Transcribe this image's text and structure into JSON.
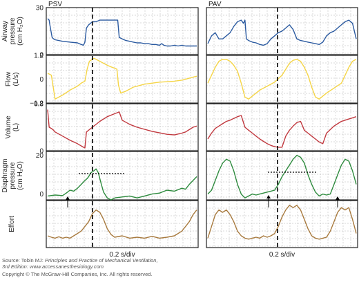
{
  "chart_data": {
    "type": "line",
    "colors": {
      "airway": "#2b5aa0",
      "flow": "#f5d547",
      "volume": "#c1393f",
      "diaphragm": "#2e8b3e",
      "effort": "#a87a3e",
      "grid": "#b0b0b0",
      "frame": "#222222"
    },
    "panels": [
      {
        "title": "PSV",
        "xlabel": "0.2 s/div"
      },
      {
        "title": "PAV",
        "xlabel": "0.2 s/div"
      }
    ],
    "rows": [
      {
        "key": "airway",
        "label_lines": [
          "Airway",
          "pressure",
          "(cm H₂O)"
        ],
        "ylim": [
          0,
          30
        ],
        "ticks": [
          {
            "v": 30,
            "t": "30"
          },
          {
            "v": 0,
            "t": "0"
          }
        ]
      },
      {
        "key": "flow",
        "label_lines": [
          "Flow",
          "(L/s)"
        ],
        "ylim": [
          -1.2,
          1.2
        ],
        "ticks": [
          {
            "v": 1.2,
            "t": "1.2"
          },
          {
            "v": 0,
            "t": "0"
          },
          {
            "v": -1.2,
            "t": "−1.2"
          }
        ]
      },
      {
        "key": "volume",
        "label_lines": [
          "Volume",
          "(L)"
        ],
        "ylim": [
          0,
          0.8
        ],
        "ticks": [
          {
            "v": 0.8,
            "t": "0.8"
          },
          {
            "v": 0,
            "t": "0"
          }
        ]
      },
      {
        "key": "diaphragm",
        "label_lines": [
          "Diaphragm",
          "pressure",
          "(cm H₂O)"
        ],
        "ylim": [
          -3,
          22
        ],
        "ticks": [
          {
            "v": 20,
            "t": "20"
          },
          {
            "v": 0,
            "t": "0"
          }
        ]
      },
      {
        "key": "effort",
        "label_lines": [
          "Effort"
        ],
        "ylim": [
          0,
          1
        ],
        "ticks": []
      }
    ],
    "series": [
      {
        "panel": 0,
        "row": "airway",
        "x": [
          0,
          0.02,
          0.03,
          0.06,
          0.08,
          0.1,
          0.2,
          0.3,
          0.4,
          0.45,
          0.48,
          0.5,
          0.52,
          0.55,
          0.6,
          0.65,
          0.7,
          0.75,
          0.8,
          0.85,
          0.9,
          0.92,
          0.94,
          0.96,
          1.0,
          1.05,
          1.1,
          1.15,
          1.2,
          1.25,
          1.3,
          1.35,
          1.4,
          1.45,
          1.5,
          1.53,
          1.56,
          1.6,
          1.65,
          1.7,
          1.75,
          1.8,
          1.85,
          1.9,
          1.95,
          2.0
        ],
        "y": [
          23,
          22,
          19,
          11,
          10,
          9.5,
          8.5,
          8,
          7.5,
          6.5,
          6,
          8,
          17,
          19,
          21,
          21,
          22,
          22,
          22,
          22,
          22,
          22,
          22,
          11,
          10,
          9,
          8.5,
          8,
          7.5,
          7.5,
          7,
          7,
          6.5,
          6.5,
          6,
          7,
          6,
          5.5,
          5.5,
          6,
          5.5,
          6,
          5.5,
          5.5,
          5.5,
          5.5
        ]
      },
      {
        "panel": 0,
        "row": "flow",
        "x": [
          0,
          0.05,
          0.1,
          0.15,
          0.2,
          0.3,
          0.4,
          0.45,
          0.5,
          0.53,
          0.56,
          0.6,
          0.62,
          0.65,
          0.7,
          0.75,
          0.8,
          0.85,
          0.9,
          0.93,
          0.95,
          0.98,
          1.05,
          1.15,
          1.3,
          1.5,
          1.7,
          1.8,
          1.9,
          1.95,
          2.0
        ],
        "y": [
          0.3,
          0.2,
          -1.0,
          -0.9,
          -0.8,
          -0.55,
          -0.35,
          -0.2,
          -0.1,
          0.5,
          0.9,
          1.0,
          1.05,
          1.0,
          0.9,
          0.8,
          0.7,
          0.62,
          0.55,
          0.5,
          -0.3,
          -0.7,
          -0.6,
          -0.4,
          -0.25,
          -0.15,
          -0.1,
          -0.05,
          0.05,
          0.1,
          0.15
        ]
      },
      {
        "panel": 0,
        "row": "volume",
        "x": [
          0,
          0.02,
          0.05,
          0.08,
          0.1,
          0.2,
          0.3,
          0.4,
          0.48,
          0.5,
          0.52,
          0.6,
          0.7,
          0.8,
          0.9,
          0.96,
          1.0,
          1.1,
          1.2,
          1.4,
          1.6,
          1.7,
          1.8,
          1.85,
          1.9,
          1.95,
          2.0
        ],
        "y": [
          0.7,
          0.4,
          0.38,
          0.35,
          0.32,
          0.25,
          0.18,
          0.12,
          0.06,
          0.05,
          0.32,
          0.4,
          0.5,
          0.58,
          0.63,
          0.66,
          0.52,
          0.45,
          0.4,
          0.33,
          0.28,
          0.27,
          0.3,
          0.32,
          0.36,
          0.4,
          0.42
        ]
      },
      {
        "panel": 0,
        "row": "diaphragm",
        "x": [
          0,
          0.1,
          0.2,
          0.25,
          0.3,
          0.35,
          0.4,
          0.45,
          0.5,
          0.53,
          0.55,
          0.58,
          0.62,
          0.65,
          0.68,
          0.72,
          0.75,
          0.8,
          0.85,
          0.9,
          1.0,
          1.1,
          1.2,
          1.3,
          1.4,
          1.5,
          1.6,
          1.7,
          1.8,
          1.85,
          1.9,
          1.95,
          2.0
        ],
        "y": [
          -1,
          -0.5,
          -0.8,
          0.5,
          2,
          1.5,
          3,
          5,
          7,
          8,
          9,
          11,
          12,
          13,
          11,
          5,
          1,
          -2,
          -3,
          -2,
          -1.5,
          -1,
          -2,
          -1,
          0,
          0.5,
          2,
          1.5,
          3,
          2.5,
          5,
          7,
          9
        ]
      },
      {
        "panel": 0,
        "row": "effort",
        "x": [
          0,
          0.05,
          0.1,
          0.15,
          0.2,
          0.25,
          0.3,
          0.35,
          0.4,
          0.45,
          0.5,
          0.55,
          0.6,
          0.65,
          0.7,
          0.75,
          0.8,
          0.85,
          0.9,
          1.0,
          1.1,
          1.2,
          1.3,
          1.4,
          1.5,
          1.6,
          1.7,
          1.75,
          1.8,
          1.85,
          1.9,
          1.95,
          2.0
        ],
        "y": [
          0.25,
          0.22,
          0.2,
          0.23,
          0.2,
          0.22,
          0.2,
          0.25,
          0.3,
          0.35,
          0.45,
          0.55,
          0.72,
          0.8,
          0.75,
          0.6,
          0.4,
          0.28,
          0.22,
          0.25,
          0.2,
          0.22,
          0.2,
          0.24,
          0.2,
          0.22,
          0.25,
          0.3,
          0.35,
          0.45,
          0.55,
          0.7,
          0.8
        ]
      },
      {
        "panel": 1,
        "row": "airway",
        "x": [
          0,
          0.05,
          0.1,
          0.15,
          0.2,
          0.25,
          0.3,
          0.35,
          0.4,
          0.45,
          0.48,
          0.5,
          0.52,
          0.55,
          0.6,
          0.65,
          0.7,
          0.75,
          0.8,
          0.85,
          0.9,
          0.95,
          1.0,
          1.05,
          1.1,
          1.15,
          1.2,
          1.25,
          1.3,
          1.35,
          1.4,
          1.45,
          1.5,
          1.55,
          1.6,
          1.65,
          1.7,
          1.75,
          1.8,
          1.85,
          1.9,
          1.95,
          2.0
        ],
        "y": [
          7,
          12,
          14,
          10,
          10,
          12,
          14,
          18,
          21,
          22,
          20,
          22,
          10,
          9,
          8,
          7.5,
          6.5,
          6,
          7,
          10,
          12,
          14,
          15,
          17,
          19,
          16,
          10,
          9,
          8.5,
          8,
          7.5,
          7,
          6.5,
          8,
          12,
          14,
          15,
          17,
          19,
          21,
          22,
          20,
          10
        ]
      },
      {
        "panel": 1,
        "row": "flow",
        "x": [
          0,
          0.05,
          0.1,
          0.15,
          0.2,
          0.25,
          0.3,
          0.35,
          0.4,
          0.45,
          0.5,
          0.55,
          0.6,
          0.65,
          0.7,
          0.8,
          0.9,
          1.0,
          1.05,
          1.1,
          1.15,
          1.2,
          1.25,
          1.3,
          1.35,
          1.4,
          1.45,
          1.5,
          1.55,
          1.6,
          1.7,
          1.8,
          1.85,
          1.9,
          1.95,
          2.0
        ],
        "y": [
          -0.2,
          0.2,
          0.6,
          0.9,
          1.0,
          1.0,
          0.9,
          0.7,
          0.4,
          -0.2,
          -0.9,
          -1.0,
          -0.85,
          -0.7,
          -0.55,
          -0.35,
          -0.15,
          0.2,
          0.5,
          0.8,
          0.95,
          1.0,
          0.9,
          0.6,
          0.2,
          -0.4,
          -0.9,
          -1.0,
          -0.85,
          -0.7,
          -0.45,
          -0.2,
          0.2,
          0.6,
          0.9,
          1.0
        ]
      },
      {
        "panel": 1,
        "row": "volume",
        "x": [
          0,
          0.05,
          0.1,
          0.15,
          0.2,
          0.25,
          0.3,
          0.35,
          0.4,
          0.45,
          0.5,
          0.55,
          0.6,
          0.65,
          0.7,
          0.75,
          0.8,
          0.85,
          0.9,
          0.95,
          1.0,
          1.05,
          1.1,
          1.15,
          1.2,
          1.25,
          1.3,
          1.35,
          1.4,
          1.45,
          1.5,
          1.55,
          1.6,
          1.65,
          1.7,
          1.75,
          1.8,
          1.85,
          1.9,
          1.95,
          2.0
        ],
        "y": [
          0.2,
          0.3,
          0.38,
          0.42,
          0.46,
          0.5,
          0.52,
          0.55,
          0.58,
          0.6,
          0.4,
          0.35,
          0.3,
          0.25,
          0.2,
          0.16,
          0.12,
          0.09,
          0.07,
          0.06,
          0.06,
          0.25,
          0.35,
          0.42,
          0.48,
          0.5,
          0.35,
          0.3,
          0.25,
          0.2,
          0.15,
          0.12,
          0.3,
          0.36,
          0.42,
          0.46,
          0.5,
          0.52,
          0.54,
          0.56,
          0.58
        ]
      },
      {
        "panel": 1,
        "row": "diaphragm",
        "x": [
          0,
          0.05,
          0.1,
          0.15,
          0.2,
          0.25,
          0.3,
          0.35,
          0.4,
          0.45,
          0.5,
          0.55,
          0.6,
          0.65,
          0.7,
          0.75,
          0.8,
          0.85,
          0.9,
          0.95,
          1.0,
          1.05,
          1.1,
          1.15,
          1.2,
          1.25,
          1.3,
          1.35,
          1.4,
          1.45,
          1.5,
          1.55,
          1.6,
          1.65,
          1.7,
          1.75,
          1.8,
          1.85,
          1.9,
          1.95,
          2.0
        ],
        "y": [
          0,
          2,
          7,
          12,
          16,
          18,
          17,
          12,
          5,
          0,
          -2,
          -1,
          0,
          -0.5,
          0,
          0.5,
          1,
          1.5,
          2,
          5,
          9,
          12,
          15,
          18,
          20,
          19,
          16,
          10,
          5,
          1,
          -1,
          0,
          -0.5,
          0,
          5,
          10,
          15,
          18,
          17,
          12,
          5
        ]
      },
      {
        "panel": 1,
        "row": "effort",
        "x": [
          0,
          0.05,
          0.1,
          0.15,
          0.2,
          0.25,
          0.3,
          0.35,
          0.4,
          0.45,
          0.5,
          0.55,
          0.6,
          0.65,
          0.7,
          0.75,
          0.8,
          0.85,
          0.9,
          0.95,
          1.0,
          1.05,
          1.1,
          1.15,
          1.2,
          1.25,
          1.3,
          1.35,
          1.4,
          1.45,
          1.5,
          1.55,
          1.6,
          1.65,
          1.7,
          1.75,
          1.8,
          1.85,
          1.9,
          1.95,
          2.0
        ],
        "y": [
          0.2,
          0.45,
          0.7,
          0.8,
          0.75,
          0.8,
          0.7,
          0.55,
          0.35,
          0.25,
          0.2,
          0.18,
          0.2,
          0.22,
          0.2,
          0.25,
          0.22,
          0.25,
          0.3,
          0.45,
          0.65,
          0.8,
          0.9,
          0.85,
          0.9,
          0.8,
          0.6,
          0.4,
          0.25,
          0.2,
          0.18,
          0.2,
          0.22,
          0.35,
          0.55,
          0.75,
          0.85,
          0.8,
          0.85,
          0.6,
          0.3
        ]
      }
    ],
    "xlim": [
      0,
      2.0
    ]
  },
  "footer": {
    "line1_prefix": "Source: Tobin MJ: ",
    "line1_title": "Principles and Practice of Mechanical Ventilation,",
    "line2": "3rd Edition: www.accessanesthesiology.com",
    "line3": "Copyright © The McGraw-Hill Companies, Inc. All rights reserved."
  }
}
